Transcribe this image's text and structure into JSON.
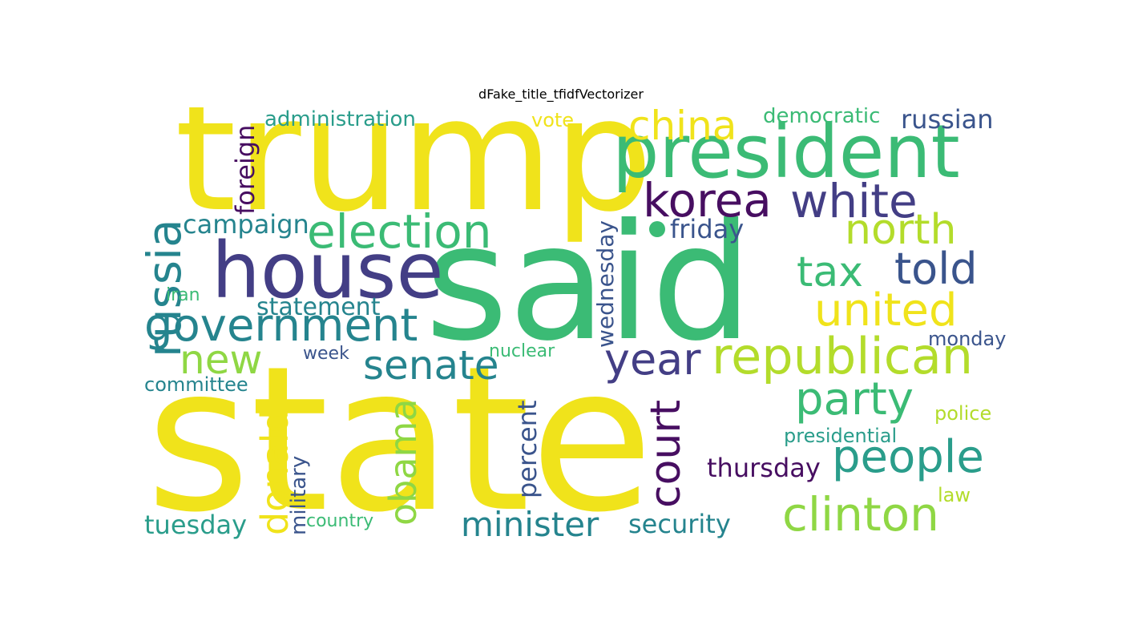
{
  "figure": {
    "title": "dFake_title_tfidfVectorizer"
  },
  "words": {
    "state": "state",
    "said": "said",
    "trump": "trump",
    "president": "president",
    "house": "house",
    "korea": "korea",
    "white": "white",
    "election": "election",
    "government": "government",
    "russia": "russia",
    "republican": "republican",
    "senate": "senate",
    "north": "north",
    "told": "told",
    "united": "united",
    "tax": "tax",
    "party": "party",
    "people": "people",
    "clinton": "clinton",
    "china": "china",
    "year": "year",
    "new": "new",
    "court": "court",
    "donald": "donald",
    "obama": "obama",
    "minister": "minister",
    "campaign": "campaign",
    "foreign": "foreign",
    "administration": "administration",
    "vote": "vote",
    "democratic": "democratic",
    "russian": "russian",
    "friday": "friday",
    "wednesday": "wednesday",
    "statement": "statement",
    "iran": "iran",
    "week": "week",
    "nuclear": "nuclear",
    "committee": "committee",
    "monday": "monday",
    "police": "police",
    "presidential": "presidential",
    "thursday": "thursday",
    "percent": "percent",
    "military": "military",
    "security": "security",
    "tuesday": "tuesday",
    "country": "country",
    "law": "law"
  },
  "colors": {
    "yellow": "#f0e31b",
    "yellow_green": "#b3dc2b",
    "green": "#3bbb75",
    "light_green": "#8fd744",
    "teal": "#2a9d8b",
    "teal_blue": "#25848e",
    "blue": "#3a548c",
    "indigo": "#433e85",
    "purple": "#470e61"
  }
}
